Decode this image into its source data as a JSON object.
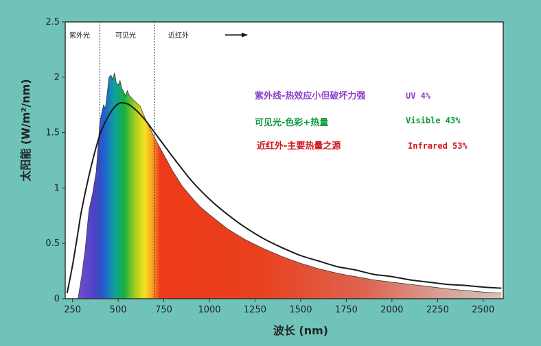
{
  "chart_data": {
    "type": "area",
    "xlabel": "波长 (nm)",
    "ylabel": "太阳能 (W/m²/nm)",
    "xlim": [
      210,
      2610
    ],
    "ylim": [
      0,
      2.5
    ],
    "x_ticks": [
      250,
      500,
      750,
      1000,
      1250,
      1500,
      1750,
      2000,
      2250,
      2500
    ],
    "y_ticks": [
      0,
      0.5,
      1,
      1.5,
      2,
      2.5
    ],
    "y_tick_labels": [
      "0",
      "0.5",
      "1",
      "1.5",
      "2",
      "2.5"
    ],
    "grid": false,
    "regions": [
      {
        "label": "紫外光",
        "x_start": 220,
        "x_end": 400
      },
      {
        "label": "可见光",
        "x_start": 400,
        "x_end": 700
      },
      {
        "label": "近红外",
        "x_start": 700,
        "x_end": 1000
      }
    ],
    "boundaries": [
      400,
      700
    ],
    "series": [
      {
        "kind": "measured-spectrum",
        "x": [
          280,
          300,
          320,
          340,
          360,
          380,
          400,
          420,
          430,
          440,
          450,
          460,
          470,
          480,
          490,
          500,
          510,
          520,
          530,
          540,
          550,
          560,
          580,
          600,
          620,
          650,
          680,
          700,
          750,
          800,
          850,
          900,
          950,
          1000,
          1100,
          1200,
          1300,
          1400,
          1500,
          1600,
          1700,
          1800,
          1900,
          2000,
          2100,
          2200,
          2300,
          2400,
          2500,
          2600
        ],
        "y": [
          0,
          0.2,
          0.45,
          0.8,
          0.95,
          1.15,
          1.6,
          1.75,
          1.72,
          1.85,
          2.0,
          2.02,
          1.98,
          2.04,
          1.95,
          1.93,
          1.97,
          1.9,
          1.87,
          1.83,
          1.88,
          1.84,
          1.8,
          1.77,
          1.74,
          1.62,
          1.52,
          1.45,
          1.3,
          1.15,
          1.02,
          0.92,
          0.83,
          0.76,
          0.63,
          0.53,
          0.45,
          0.38,
          0.32,
          0.27,
          0.23,
          0.2,
          0.17,
          0.15,
          0.13,
          0.11,
          0.09,
          0.075,
          0.06,
          0.05
        ]
      },
      {
        "kind": "blackbody-curve",
        "x": [
          220,
          250,
          280,
          300,
          350,
          400,
          450,
          500,
          550,
          600,
          650,
          700,
          800,
          900,
          1000,
          1100,
          1200,
          1300,
          1400,
          1500,
          1600,
          1700,
          1800,
          1900,
          2000,
          2100,
          2200,
          2300,
          2400,
          2500,
          2600
        ],
        "y": [
          0.05,
          0.3,
          0.6,
          0.8,
          1.18,
          1.48,
          1.66,
          1.76,
          1.76,
          1.7,
          1.61,
          1.5,
          1.28,
          1.07,
          0.9,
          0.76,
          0.64,
          0.54,
          0.46,
          0.39,
          0.34,
          0.29,
          0.26,
          0.22,
          0.2,
          0.17,
          0.15,
          0.13,
          0.12,
          0.105,
          0.095
        ]
      }
    ]
  },
  "legend": {
    "items": [
      {
        "text": "紫外线-热效应小但破坏力强",
        "value": "UV 4%",
        "color": "#8a3fc9"
      },
      {
        "text": "可见光-色彩+热量",
        "value": "Visible 43%",
        "color": "#0e9a3c"
      },
      {
        "text": "近红外-主要热量之源",
        "value": "Infrared 53%",
        "color": "#d2141a"
      }
    ]
  }
}
